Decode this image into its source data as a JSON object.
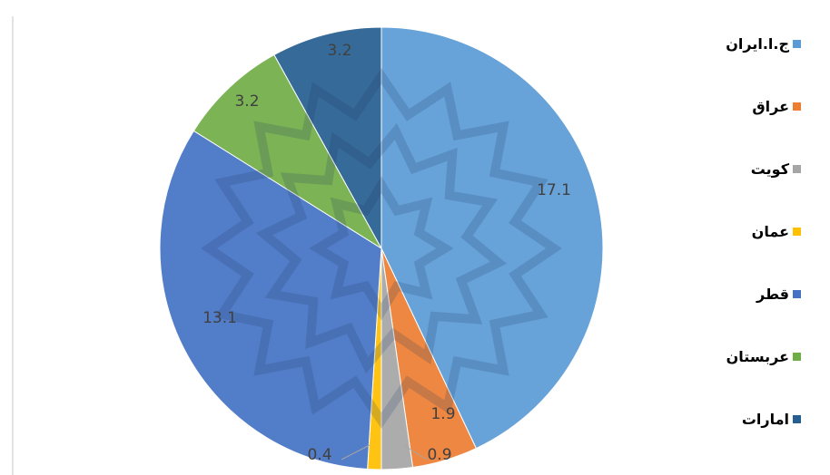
{
  "chart_data": {
    "type": "pie",
    "title": "",
    "slices": [
      {
        "name": "ج.ا.ایران",
        "value": 17.1,
        "color": "#5B9BD5",
        "label": "17.1"
      },
      {
        "name": "عراق",
        "value": 1.9,
        "color": "#ED7D31",
        "label": "1.9"
      },
      {
        "name": "کویت",
        "value": 0.9,
        "color": "#A5A5A5",
        "label": "0.9"
      },
      {
        "name": "عمان",
        "value": 0.4,
        "color": "#FFC000",
        "label": "0.4"
      },
      {
        "name": "قطر",
        "value": 13.1,
        "color": "#4472C4",
        "label": "13.1"
      },
      {
        "name": "عربستان",
        "value": 3.2,
        "color": "#70AD47",
        "label": "3.2"
      },
      {
        "name": "امارات",
        "value": 3.2,
        "color": "#255E91",
        "label": "3.2"
      }
    ],
    "legend_position": "right",
    "start_angle": "12 o'clock",
    "direction": "clockwise"
  }
}
